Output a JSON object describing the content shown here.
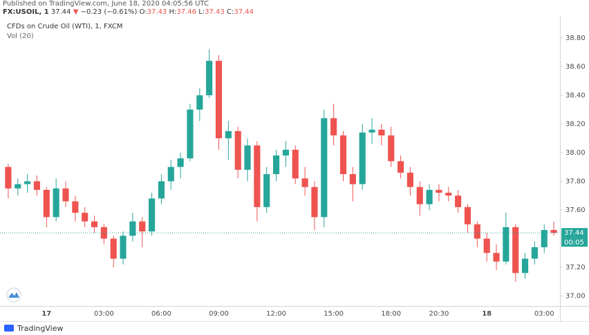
{
  "header": {
    "published": "Published on TradingView.com, June 18, 2020 04:05:56 UTC",
    "symbol": "FX:USOIL, 1",
    "last": "37.44",
    "arrow": "▼",
    "change": "−0.23 (−0.61%)",
    "o_label": "O:",
    "o": "37.43",
    "h_label": "H:",
    "h": "37.46",
    "l_label": "L:",
    "l": "37.43",
    "c_label": "C:",
    "c": "37.44"
  },
  "footer": {
    "brand": "TradingView"
  },
  "chart_data": {
    "type": "candlestick",
    "title": "CFDs on Crude Oil (WTI), 1, FXCM",
    "indicator": "Vol (20)",
    "categories": [
      null,
      null,
      null,
      null,
      "17",
      null,
      null,
      null,
      null,
      null,
      "03:00",
      null,
      null,
      null,
      null,
      null,
      "06:00",
      null,
      null,
      null,
      null,
      null,
      "09:00",
      null,
      null,
      null,
      null,
      null,
      "12:00",
      null,
      null,
      null,
      null,
      null,
      "15:00",
      null,
      null,
      null,
      null,
      null,
      "18:00",
      null,
      null,
      null,
      null,
      "20:30",
      null,
      null,
      null,
      null,
      "18",
      null,
      null,
      null,
      null,
      null,
      "03:00",
      null
    ],
    "open": [
      37.9,
      37.75,
      37.78,
      37.8,
      37.74,
      37.55,
      37.75,
      37.66,
      37.58,
      37.52,
      37.48,
      37.4,
      37.26,
      37.42,
      37.52,
      37.45,
      37.68,
      37.8,
      37.9,
      37.96,
      38.3,
      38.4,
      38.64,
      38.1,
      38.15,
      37.88,
      38.05,
      37.62,
      37.85,
      37.98,
      38.02,
      37.82,
      37.76,
      37.55,
      38.24,
      38.12,
      37.85,
      37.78,
      38.14,
      38.16,
      38.12,
      37.94,
      37.86,
      37.76,
      37.64,
      37.74,
      37.72,
      37.7,
      37.62,
      37.5,
      37.4,
      37.3,
      37.24,
      37.48,
      37.16,
      37.26,
      37.34,
      37.46
    ],
    "high": [
      37.92,
      37.82,
      37.85,
      37.84,
      37.76,
      37.82,
      37.8,
      37.7,
      37.62,
      37.56,
      37.5,
      37.42,
      37.45,
      37.58,
      37.55,
      37.72,
      37.85,
      37.95,
      38.0,
      38.34,
      38.45,
      38.72,
      38.68,
      38.22,
      38.18,
      38.1,
      38.08,
      37.9,
      38.02,
      38.08,
      38.05,
      37.9,
      37.8,
      38.3,
      38.34,
      38.15,
      37.9,
      38.2,
      38.24,
      38.2,
      38.18,
      37.98,
      37.9,
      37.8,
      37.78,
      37.78,
      37.76,
      37.74,
      37.64,
      37.52,
      37.44,
      37.36,
      37.58,
      37.5,
      37.3,
      37.38,
      37.5,
      37.52
    ],
    "low": [
      37.68,
      37.7,
      37.72,
      37.7,
      37.48,
      37.52,
      37.62,
      37.52,
      37.48,
      37.44,
      37.36,
      37.2,
      37.22,
      37.38,
      37.34,
      37.42,
      37.64,
      37.74,
      37.82,
      37.94,
      38.22,
      38.38,
      38.02,
      37.95,
      37.82,
      37.8,
      37.52,
      37.58,
      37.8,
      37.9,
      37.78,
      37.7,
      37.46,
      37.48,
      38.05,
      37.8,
      37.66,
      37.74,
      38.06,
      38.05,
      37.9,
      37.82,
      37.7,
      37.56,
      37.6,
      37.66,
      37.66,
      37.58,
      37.44,
      37.34,
      37.24,
      37.18,
      37.22,
      37.1,
      37.12,
      37.22,
      37.3,
      37.42
    ],
    "close": [
      37.75,
      37.78,
      37.8,
      37.74,
      37.55,
      37.75,
      37.66,
      37.58,
      37.52,
      37.48,
      37.4,
      37.26,
      37.42,
      37.52,
      37.45,
      37.68,
      37.8,
      37.9,
      37.96,
      38.3,
      38.4,
      38.64,
      38.1,
      38.15,
      37.88,
      38.05,
      37.62,
      37.85,
      37.98,
      38.02,
      37.82,
      37.76,
      37.55,
      38.24,
      38.12,
      37.85,
      37.78,
      38.14,
      38.16,
      38.12,
      37.94,
      37.86,
      37.76,
      37.64,
      37.74,
      37.72,
      37.7,
      37.62,
      37.5,
      37.4,
      37.3,
      37.24,
      37.48,
      37.16,
      37.26,
      37.34,
      37.46,
      37.44
    ],
    "up_color": "#26a69a",
    "down_color": "#ef5350",
    "last_price": {
      "value": 37.44,
      "label": "37.44"
    },
    "countdown": "00:05",
    "last_color": "#26a69a",
    "ylim": [
      36.93,
      38.92
    ],
    "yticks": [
      {
        "value": 37.0,
        "label": "37.00"
      },
      {
        "value": 37.2,
        "label": "37.20"
      },
      {
        "value": 37.4,
        "label": "37.40"
      },
      {
        "value": 37.6,
        "label": "37.60"
      },
      {
        "value": 37.8,
        "label": "37.80"
      },
      {
        "value": 38.0,
        "label": "38.00"
      },
      {
        "value": 38.2,
        "label": "38.20"
      },
      {
        "value": 38.4,
        "label": "38.40"
      },
      {
        "value": 38.6,
        "label": "38.60"
      },
      {
        "value": 38.8,
        "label": "38.80"
      }
    ],
    "grid": false
  }
}
